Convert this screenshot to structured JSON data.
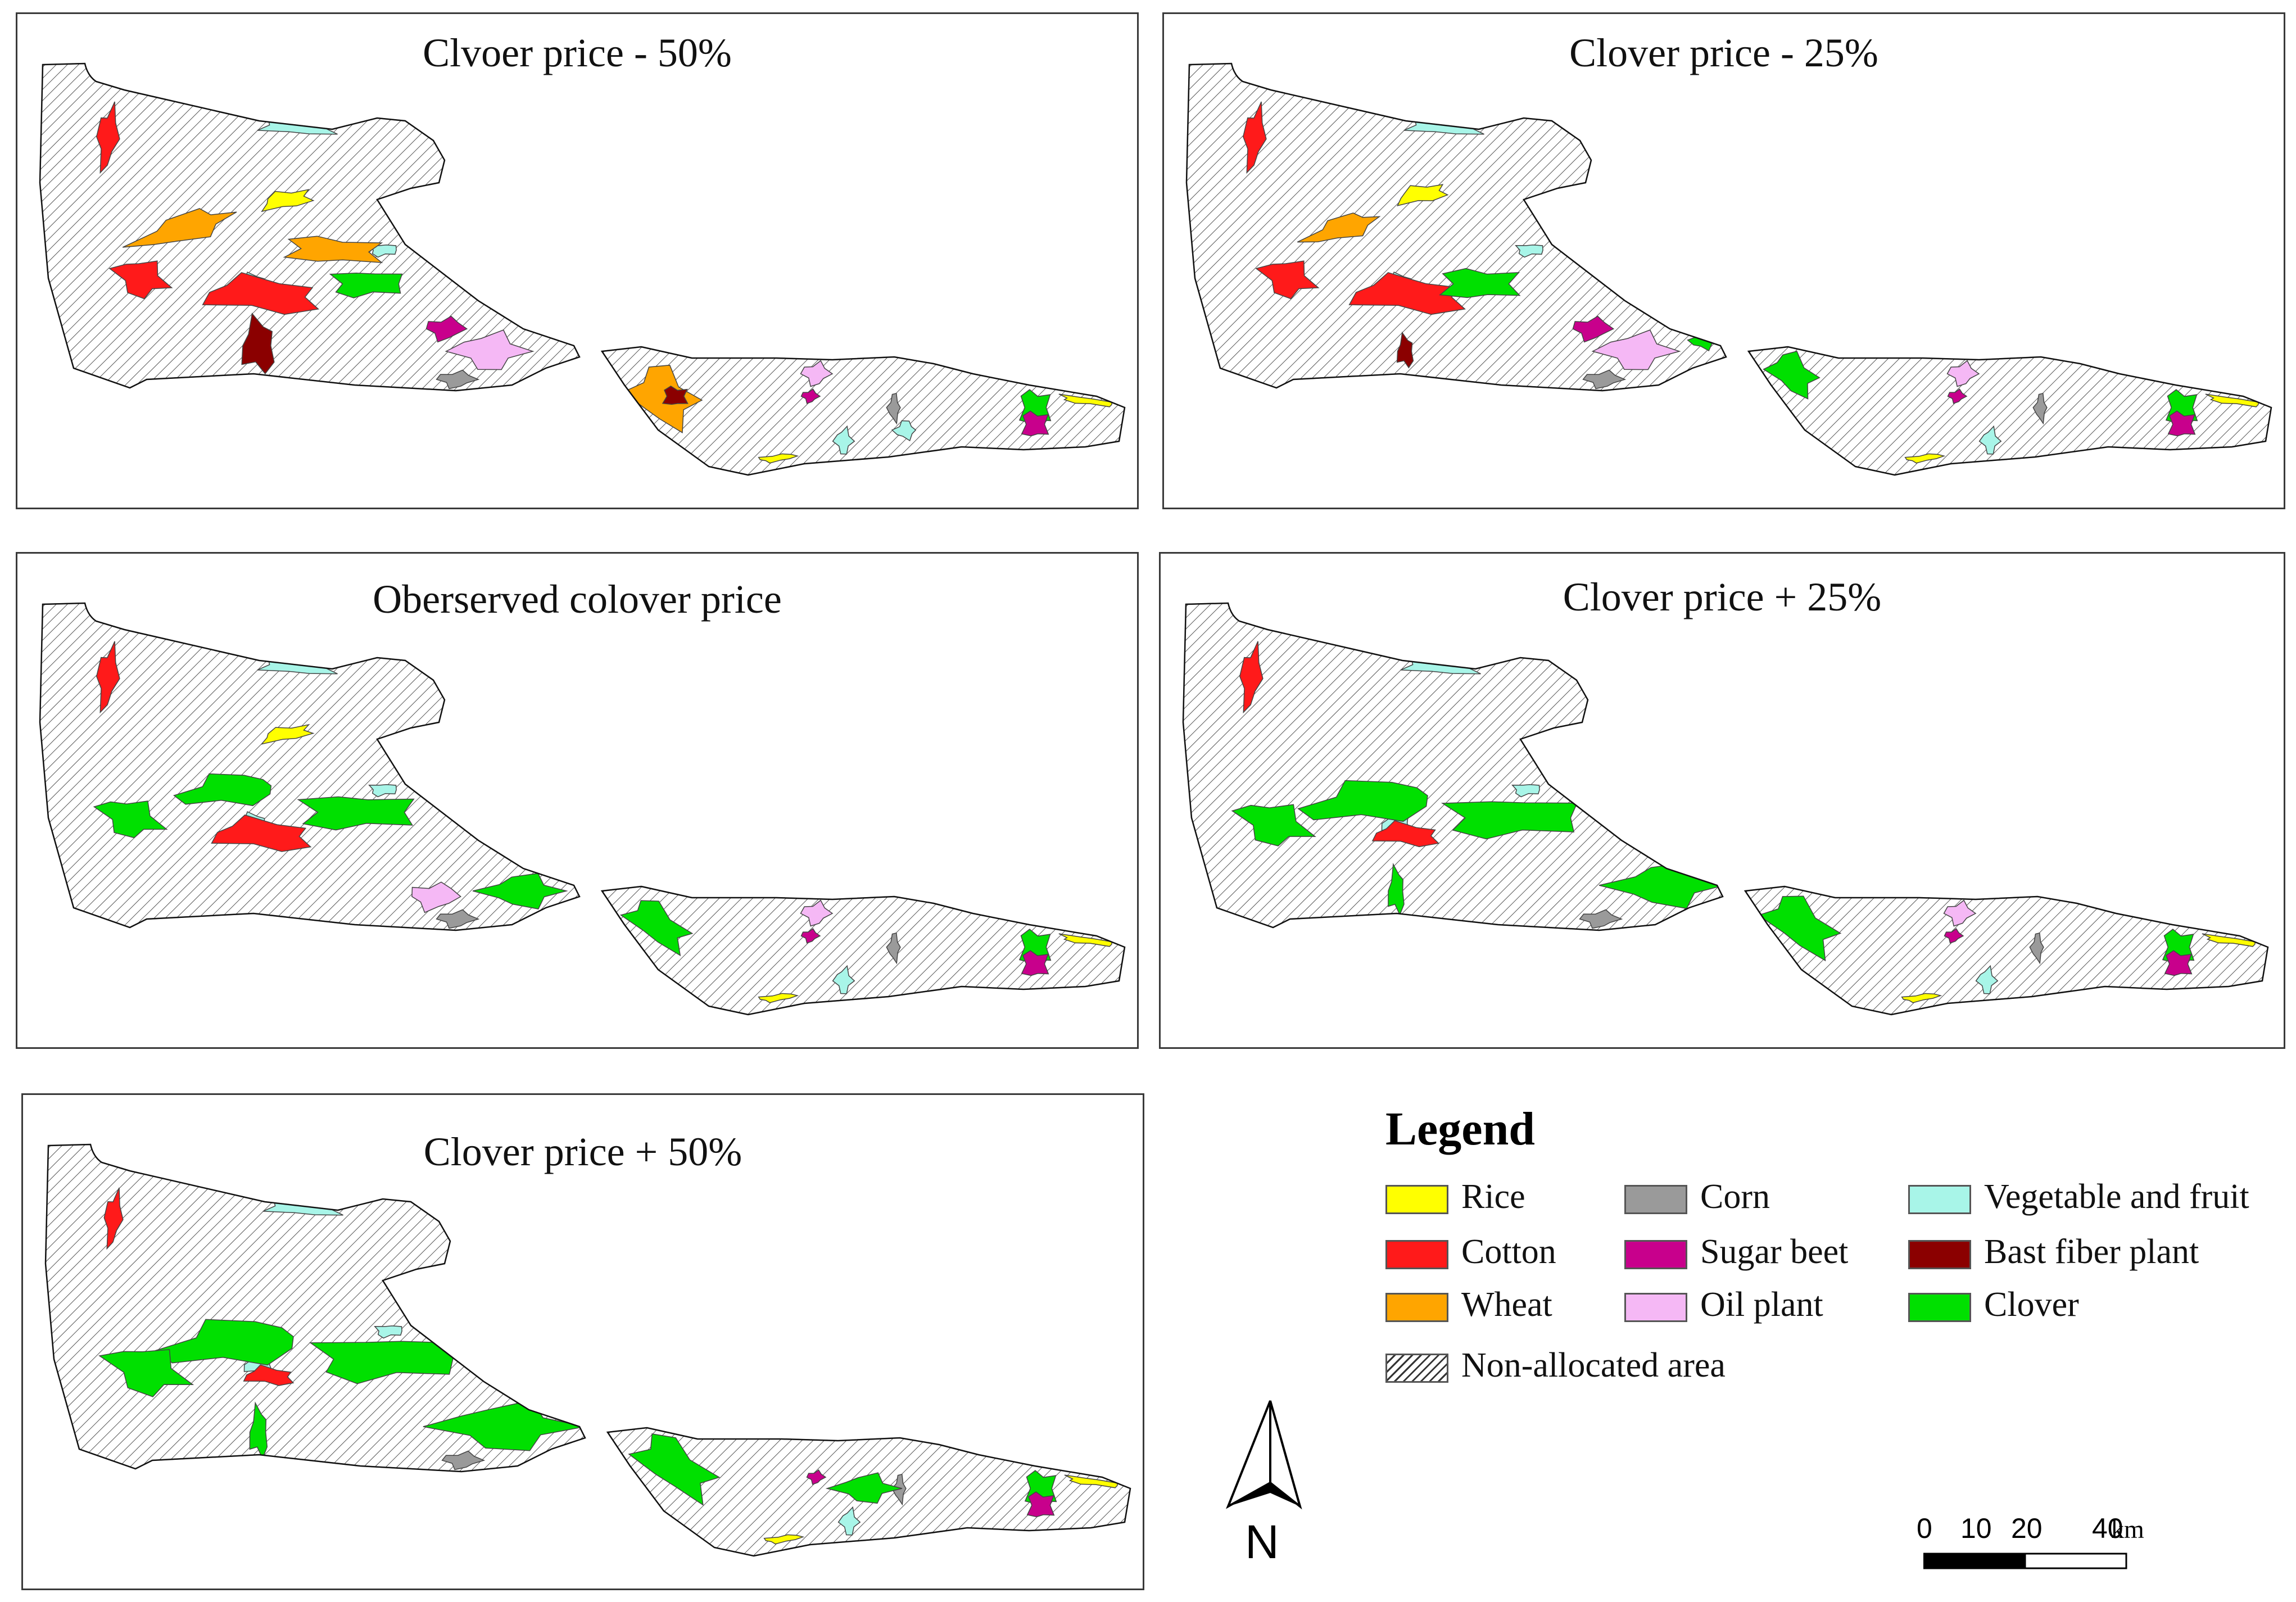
{
  "panels": [
    {
      "title": "Clvoer price - 50%",
      "scenario": "minus50"
    },
    {
      "title": "Clover price - 25%",
      "scenario": "minus25"
    },
    {
      "title": "Oberserved colover price",
      "scenario": "observed"
    },
    {
      "title": "Clover price + 25%",
      "scenario": "plus25"
    },
    {
      "title": "Clover price + 50%",
      "scenario": "plus50"
    }
  ],
  "legend": {
    "title": "Legend",
    "items": [
      {
        "label": "Rice",
        "color": "#ffff00"
      },
      {
        "label": "Corn",
        "color": "#9a9a9a"
      },
      {
        "label": "Vegetable and fruit",
        "color": "#a8f5e8"
      },
      {
        "label": "Cotton",
        "color": "#ff1a1a"
      },
      {
        "label": "Sugar beet",
        "color": "#c8008c"
      },
      {
        "label": "Bast fiber plant",
        "color": "#8b0000"
      },
      {
        "label": "Wheat",
        "color": "#ffa500"
      },
      {
        "label": "Oil plant",
        "color": "#f5b8f5"
      },
      {
        "label": "Clover",
        "color": "#00e000"
      },
      {
        "label": "Non-allocated area",
        "pattern": "hatch"
      }
    ]
  },
  "north_arrow": {
    "label": "N"
  },
  "scale_bar": {
    "ticks": [
      "0",
      "10",
      "20",
      "40"
    ],
    "unit": "km"
  }
}
